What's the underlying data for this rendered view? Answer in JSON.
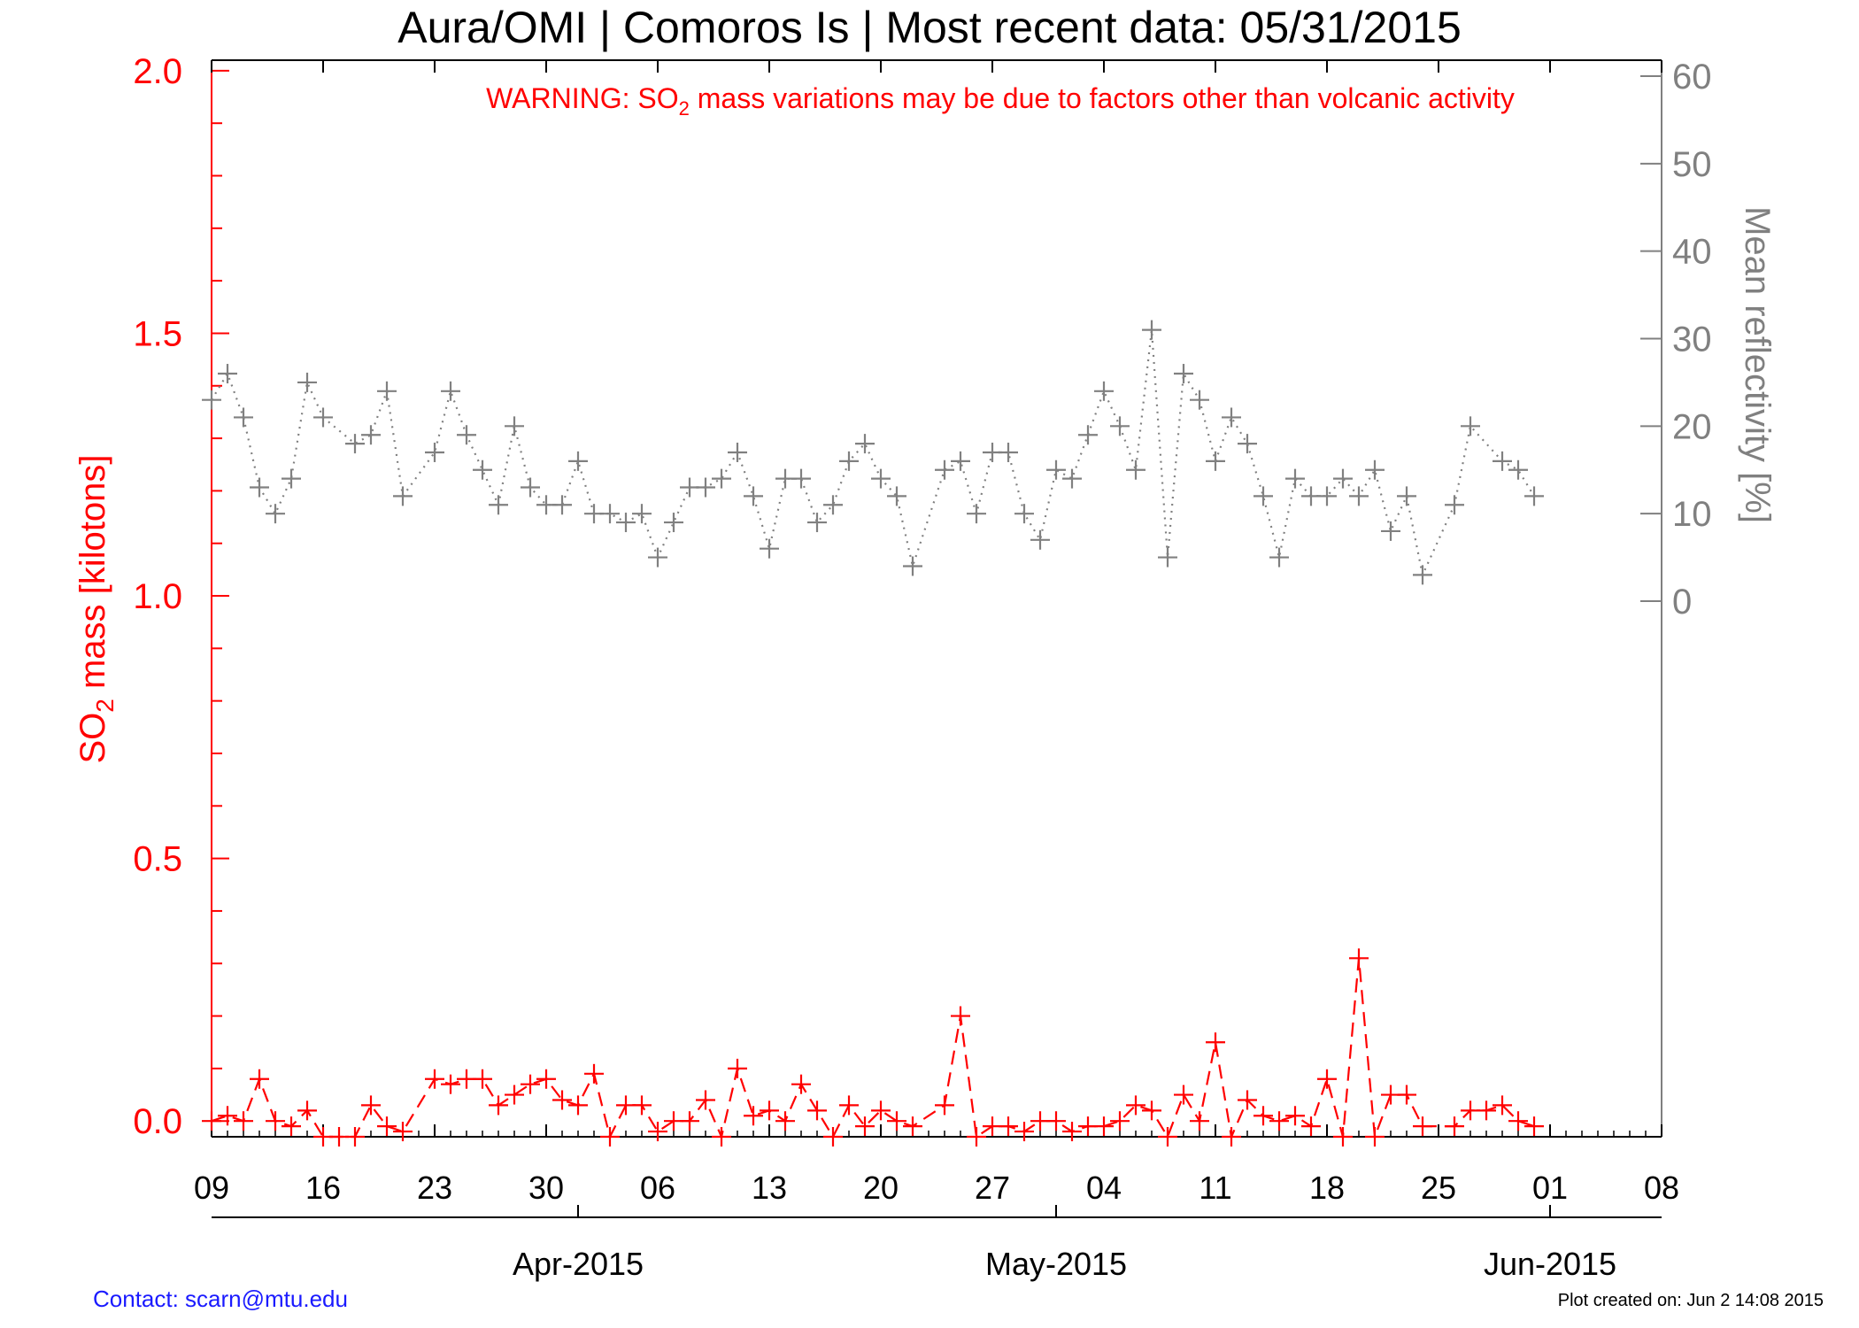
{
  "title": "Aura/OMI | Comoros Is | Most recent data: 05/31/2015",
  "warning": {
    "prefix": "WARNING: SO",
    "subscript": "2",
    "suffix": " mass variations may be due to factors other than volcanic activity"
  },
  "footer": {
    "contact": "Contact: scarn@mtu.edu",
    "created": "Plot created on: Jun  2 14:08 2015"
  },
  "colors": {
    "so2": "#ff0000",
    "reflectivity": "#808080",
    "axis": "#000000",
    "contact": "#1a1aff"
  },
  "chart_data": {
    "type": "line",
    "xlim": [
      "2015-03-09",
      "2015-06-08"
    ],
    "x_tick_labels": [
      "09",
      "16",
      "23",
      "30",
      "06",
      "13",
      "20",
      "27",
      "04",
      "11",
      "18",
      "25",
      "01",
      "08"
    ],
    "x_tick_dates": [
      "2015-03-09",
      "2015-03-16",
      "2015-03-23",
      "2015-03-30",
      "2015-04-06",
      "2015-04-13",
      "2015-04-20",
      "2015-04-27",
      "2015-05-04",
      "2015-05-11",
      "2015-05-18",
      "2015-05-25",
      "2015-06-01",
      "2015-06-08"
    ],
    "month_labels": [
      "Apr-2015",
      "May-2015",
      "Jun-2015"
    ],
    "month_dates": [
      "2015-04-01",
      "2015-05-01",
      "2015-06-01"
    ],
    "y_left": {
      "label_prefix": "SO",
      "label_sub": "2",
      "label_suffix": " mass [kilotons]",
      "ylim": [
        -0.03,
        2.02
      ],
      "ticks": [
        0.0,
        0.5,
        1.0,
        1.5,
        2.0
      ],
      "tick_labels": [
        "0.0",
        "0.5",
        "1.0",
        "1.5",
        "2.0"
      ]
    },
    "y_right": {
      "label": "Mean reflectivity [%]",
      "ylim": [
        0,
        60
      ],
      "ticks": [
        0,
        10,
        20,
        30,
        40,
        50,
        60
      ],
      "tick_labels": [
        "0",
        "10",
        "20",
        "30",
        "40",
        "50",
        "60"
      ]
    },
    "series": [
      {
        "id": "so2_mass",
        "axis": "left",
        "style": "dashed",
        "points": [
          [
            "2015-03-09",
            0.0
          ],
          [
            "2015-03-10",
            0.01
          ],
          [
            "2015-03-11",
            0.0
          ],
          [
            "2015-03-12",
            0.08
          ],
          [
            "2015-03-13",
            0.0
          ],
          [
            "2015-03-14",
            -0.01
          ],
          [
            "2015-03-15",
            0.02
          ],
          [
            "2015-03-16",
            -0.03
          ],
          [
            "2015-03-17",
            -0.03
          ],
          [
            "2015-03-18",
            -0.03
          ],
          [
            "2015-03-19",
            0.03
          ],
          [
            "2015-03-20",
            -0.01
          ],
          [
            "2015-03-21",
            -0.02
          ],
          [
            "2015-03-23",
            0.08
          ],
          [
            "2015-03-24",
            0.07
          ],
          [
            "2015-03-25",
            0.08
          ],
          [
            "2015-03-26",
            0.08
          ],
          [
            "2015-03-27",
            0.03
          ],
          [
            "2015-03-28",
            0.05
          ],
          [
            "2015-03-29",
            0.07
          ],
          [
            "2015-03-30",
            0.08
          ],
          [
            "2015-03-31",
            0.04
          ],
          [
            "2015-04-01",
            0.03
          ],
          [
            "2015-04-02",
            0.09
          ],
          [
            "2015-04-03",
            -0.03
          ],
          [
            "2015-04-04",
            0.03
          ],
          [
            "2015-04-05",
            0.03
          ],
          [
            "2015-04-06",
            -0.02
          ],
          [
            "2015-04-07",
            0.0
          ],
          [
            "2015-04-08",
            0.0
          ],
          [
            "2015-04-09",
            0.04
          ],
          [
            "2015-04-10",
            -0.03
          ],
          [
            "2015-04-11",
            0.1
          ],
          [
            "2015-04-12",
            0.01
          ],
          [
            "2015-04-13",
            0.02
          ],
          [
            "2015-04-14",
            0.0
          ],
          [
            "2015-04-15",
            0.07
          ],
          [
            "2015-04-16",
            0.02
          ],
          [
            "2015-04-17",
            -0.03
          ],
          [
            "2015-04-18",
            0.03
          ],
          [
            "2015-04-19",
            -0.01
          ],
          [
            "2015-04-20",
            0.02
          ],
          [
            "2015-04-21",
            0.0
          ],
          [
            "2015-04-22",
            -0.01
          ],
          [
            "2015-04-24",
            0.03
          ],
          [
            "2015-04-25",
            0.2
          ],
          [
            "2015-04-26",
            -0.03
          ],
          [
            "2015-04-27",
            -0.01
          ],
          [
            "2015-04-28",
            -0.01
          ],
          [
            "2015-04-29",
            -0.02
          ],
          [
            "2015-04-30",
            0.0
          ],
          [
            "2015-05-01",
            0.0
          ],
          [
            "2015-05-02",
            -0.02
          ],
          [
            "2015-05-03",
            -0.01
          ],
          [
            "2015-05-04",
            -0.01
          ],
          [
            "2015-05-05",
            0.0
          ],
          [
            "2015-05-06",
            0.03
          ],
          [
            "2015-05-07",
            0.02
          ],
          [
            "2015-05-08",
            -0.03
          ],
          [
            "2015-05-09",
            0.05
          ],
          [
            "2015-05-10",
            0.0
          ],
          [
            "2015-05-11",
            0.15
          ],
          [
            "2015-05-12",
            -0.03
          ],
          [
            "2015-05-13",
            0.04
          ],
          [
            "2015-05-14",
            0.01
          ],
          [
            "2015-05-15",
            0.0
          ],
          [
            "2015-05-16",
            0.01
          ],
          [
            "2015-05-17",
            -0.01
          ],
          [
            "2015-05-18",
            0.08
          ],
          [
            "2015-05-19",
            -0.03
          ],
          [
            "2015-05-20",
            0.31
          ],
          [
            "2015-05-21",
            -0.03
          ],
          [
            "2015-05-22",
            0.05
          ],
          [
            "2015-05-23",
            0.05
          ],
          [
            "2015-05-24",
            -0.01
          ],
          [
            "2015-05-26",
            -0.01
          ],
          [
            "2015-05-27",
            0.02
          ],
          [
            "2015-05-28",
            0.02
          ],
          [
            "2015-05-29",
            0.03
          ],
          [
            "2015-05-30",
            0.0
          ],
          [
            "2015-05-31",
            -0.01
          ]
        ]
      },
      {
        "id": "mean_reflectivity",
        "axis": "right",
        "style": "dotted",
        "points": [
          [
            "2015-03-09",
            23
          ],
          [
            "2015-03-10",
            26
          ],
          [
            "2015-03-11",
            21
          ],
          [
            "2015-03-12",
            13
          ],
          [
            "2015-03-13",
            10
          ],
          [
            "2015-03-14",
            14
          ],
          [
            "2015-03-15",
            25
          ],
          [
            "2015-03-16",
            21
          ],
          [
            "2015-03-18",
            18
          ],
          [
            "2015-03-19",
            19
          ],
          [
            "2015-03-20",
            24
          ],
          [
            "2015-03-21",
            12
          ],
          [
            "2015-03-23",
            17
          ],
          [
            "2015-03-24",
            24
          ],
          [
            "2015-03-25",
            19
          ],
          [
            "2015-03-26",
            15
          ],
          [
            "2015-03-27",
            11
          ],
          [
            "2015-03-28",
            20
          ],
          [
            "2015-03-29",
            13
          ],
          [
            "2015-03-30",
            11
          ],
          [
            "2015-03-31",
            11
          ],
          [
            "2015-04-01",
            16
          ],
          [
            "2015-04-02",
            10
          ],
          [
            "2015-04-03",
            10
          ],
          [
            "2015-04-04",
            9
          ],
          [
            "2015-04-05",
            10
          ],
          [
            "2015-04-06",
            5
          ],
          [
            "2015-04-07",
            9
          ],
          [
            "2015-04-08",
            13
          ],
          [
            "2015-04-09",
            13
          ],
          [
            "2015-04-10",
            14
          ],
          [
            "2015-04-11",
            17
          ],
          [
            "2015-04-12",
            12
          ],
          [
            "2015-04-13",
            6
          ],
          [
            "2015-04-14",
            14
          ],
          [
            "2015-04-15",
            14
          ],
          [
            "2015-04-16",
            9
          ],
          [
            "2015-04-17",
            11
          ],
          [
            "2015-04-18",
            16
          ],
          [
            "2015-04-19",
            18
          ],
          [
            "2015-04-20",
            14
          ],
          [
            "2015-04-21",
            12
          ],
          [
            "2015-04-22",
            4
          ],
          [
            "2015-04-24",
            15
          ],
          [
            "2015-04-25",
            16
          ],
          [
            "2015-04-26",
            10
          ],
          [
            "2015-04-27",
            17
          ],
          [
            "2015-04-28",
            17
          ],
          [
            "2015-04-29",
            10
          ],
          [
            "2015-04-30",
            7
          ],
          [
            "2015-05-01",
            15
          ],
          [
            "2015-05-02",
            14
          ],
          [
            "2015-05-03",
            19
          ],
          [
            "2015-05-04",
            24
          ],
          [
            "2015-05-05",
            20
          ],
          [
            "2015-05-06",
            15
          ],
          [
            "2015-05-07",
            31
          ],
          [
            "2015-05-08",
            5
          ],
          [
            "2015-05-09",
            26
          ],
          [
            "2015-05-10",
            23
          ],
          [
            "2015-05-11",
            16
          ],
          [
            "2015-05-12",
            21
          ],
          [
            "2015-05-13",
            18
          ],
          [
            "2015-05-14",
            12
          ],
          [
            "2015-05-15",
            5
          ],
          [
            "2015-05-16",
            14
          ],
          [
            "2015-05-17",
            12
          ],
          [
            "2015-05-18",
            12
          ],
          [
            "2015-05-19",
            14
          ],
          [
            "2015-05-20",
            12
          ],
          [
            "2015-05-21",
            15
          ],
          [
            "2015-05-22",
            8
          ],
          [
            "2015-05-23",
            12
          ],
          [
            "2015-05-24",
            3
          ],
          [
            "2015-05-26",
            11
          ],
          [
            "2015-05-27",
            20
          ],
          [
            "2015-05-29",
            16
          ],
          [
            "2015-05-30",
            15
          ],
          [
            "2015-05-31",
            12
          ]
        ]
      }
    ]
  }
}
